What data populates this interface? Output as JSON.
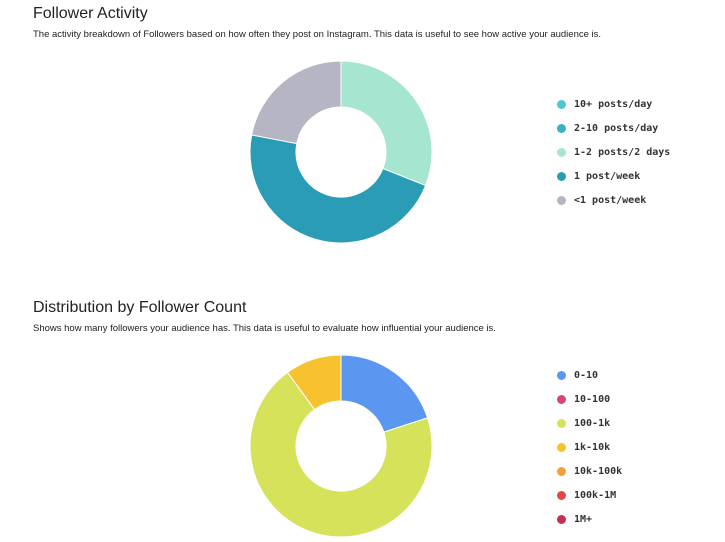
{
  "chart_data": [
    {
      "type": "pie",
      "title": "Follower Activity",
      "subtitle": "The activity breakdown of Followers based on how often they post on Instagram. This data is useful to see how active your audience is.",
      "legend_position": "right",
      "donut": true,
      "categories": [
        "10+ posts/day",
        "2-10 posts/day",
        "1-2 posts/2 days",
        "1 post/week",
        "<1 post/week"
      ],
      "values": [
        0,
        0,
        31,
        47,
        22
      ],
      "colors": [
        "#4bc8d2",
        "#3aaecb",
        "#a6e6d1",
        "#2b9cb5",
        "#b5b5c3"
      ]
    },
    {
      "type": "pie",
      "title": "Distribution by Follower Count",
      "subtitle": "Shows how many followers your audience has. This data is useful to evaluate how influential your audience is.",
      "legend_position": "right",
      "donut": true,
      "categories": [
        "0-10",
        "10-100",
        "100-1k",
        "1k-10k",
        "10k-100k",
        "100k-1M",
        "1M+"
      ],
      "values": [
        20,
        0,
        70,
        10,
        0,
        0,
        0
      ],
      "colors": [
        "#5b97f0",
        "#d4477a",
        "#d6e25a",
        "#f8c22e",
        "#f4a03a",
        "#e34848",
        "#c2334f"
      ]
    }
  ]
}
